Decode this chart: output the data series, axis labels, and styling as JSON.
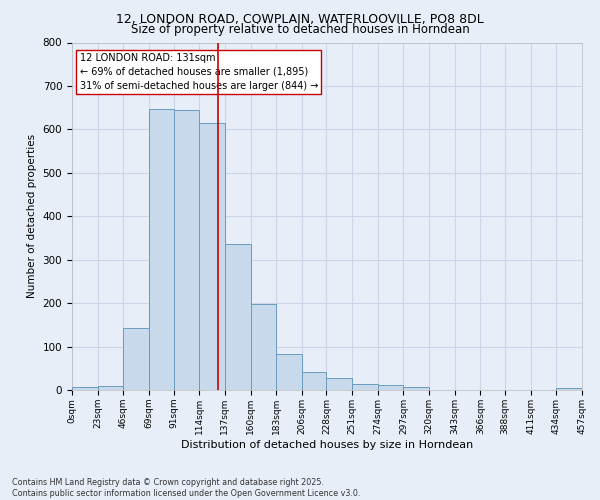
{
  "title_line1": "12, LONDON ROAD, COWPLAIN, WATERLOOVILLE, PO8 8DL",
  "title_line2": "Size of property relative to detached houses in Horndean",
  "xlabel": "Distribution of detached houses by size in Horndean",
  "ylabel": "Number of detached properties",
  "bin_edges": [
    0,
    23,
    46,
    69,
    91,
    114,
    137,
    160,
    183,
    206,
    228,
    251,
    274,
    297,
    320,
    343,
    366,
    388,
    411,
    434,
    457
  ],
  "bar_heights": [
    7,
    10,
    143,
    648,
    645,
    615,
    335,
    198,
    83,
    42,
    27,
    13,
    12,
    8,
    0,
    0,
    0,
    0,
    0,
    5
  ],
  "bar_color": "#c8d9ec",
  "bar_edge_color": "#6a9cbf",
  "grid_color": "#ccd6e8",
  "background_color": "#e8eef8",
  "property_line_x": 131,
  "property_line_color": "#cc0000",
  "annotation_text": "12 LONDON ROAD: 131sqm\n← 69% of detached houses are smaller (1,895)\n31% of semi-detached houses are larger (844) →",
  "annotation_box_color": "#ffffff",
  "annotation_box_edge_color": "#cc0000",
  "ylim": [
    0,
    800
  ],
  "yticks": [
    0,
    100,
    200,
    300,
    400,
    500,
    600,
    700,
    800
  ],
  "footnote": "Contains HM Land Registry data © Crown copyright and database right 2025.\nContains public sector information licensed under the Open Government Licence v3.0.",
  "tick_labels": [
    "0sqm",
    "23sqm",
    "46sqm",
    "69sqm",
    "91sqm",
    "114sqm",
    "137sqm",
    "160sqm",
    "183sqm",
    "206sqm",
    "228sqm",
    "251sqm",
    "274sqm",
    "297sqm",
    "320sqm",
    "343sqm",
    "366sqm",
    "388sqm",
    "411sqm",
    "434sqm",
    "457sqm"
  ]
}
